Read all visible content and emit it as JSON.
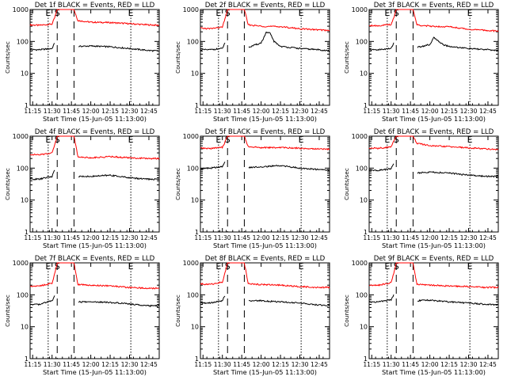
{
  "figure": {
    "start_time_label": "Start Time (15-Jun-05 11:13:00)",
    "ylabel": "Counts/sec",
    "colors": {
      "events": "#000000",
      "lld": "#ff0000",
      "axes": "#000000"
    }
  },
  "chart_data": [
    {
      "type": "line",
      "title": "Det 1f BLACK = Events, RED = LLD",
      "xlabel": "Start Time (15-Jun-05 11:13:00)",
      "ylabel": "Counts/sec",
      "yscale": "log",
      "ylim": [
        1,
        1000
      ],
      "xlim": [
        "11:13",
        "12:53"
      ],
      "xticks": [
        "11:15",
        "11:30",
        "11:45",
        "12:00",
        "12:15",
        "12:30",
        "12:45"
      ],
      "yticks": [
        "1",
        "10",
        "100",
        "1000"
      ],
      "markers": [
        {
          "label": "E",
          "style": "dotted",
          "time": "11:27"
        },
        {
          "label": "S",
          "style": "dashed",
          "time": "11:34"
        },
        {
          "label": "",
          "style": "dashed",
          "time": "11:47"
        },
        {
          "label": "E",
          "style": "dotted",
          "time": "12:31"
        }
      ],
      "series": [
        {
          "name": "LLD",
          "color": "#ff0000",
          "x": [
            "11:13",
            "11:20",
            "11:30",
            "11:32",
            "11:34",
            "11:47",
            "11:50",
            "12:00",
            "12:15",
            "12:30",
            "12:45",
            "12:53"
          ],
          "y": [
            330,
            320,
            350,
            550,
            1000,
            1000,
            450,
            400,
            390,
            360,
            330,
            320
          ]
        },
        {
          "name": "Events",
          "color": "#000000",
          "x": [
            "11:13",
            "11:20",
            "11:30",
            "11:32",
            "11:34",
            "11:47",
            "11:50",
            "12:00",
            "12:15",
            "12:30",
            "12:45",
            "12:53"
          ],
          "y": [
            55,
            55,
            60,
            90,
            null,
            null,
            70,
            72,
            68,
            60,
            52,
            50
          ]
        }
      ]
    },
    {
      "type": "line",
      "title": "Det 2f BLACK = Events, RED = LLD",
      "xlabel": "Start Time (15-Jun-05 11:13:00)",
      "ylabel": "Counts/sec",
      "yscale": "log",
      "ylim": [
        1,
        1000
      ],
      "xlim": [
        "11:13",
        "12:53"
      ],
      "xticks": [
        "11:15",
        "11:30",
        "11:45",
        "12:00",
        "12:15",
        "12:30",
        "12:45"
      ],
      "yticks": [
        "1",
        "10",
        "100",
        "1000"
      ],
      "markers": [
        {
          "label": "E",
          "style": "dotted",
          "time": "11:27"
        },
        {
          "label": "S",
          "style": "dashed",
          "time": "11:34"
        },
        {
          "label": "",
          "style": "dashed",
          "time": "11:47"
        },
        {
          "label": "E",
          "style": "dotted",
          "time": "12:31"
        }
      ],
      "series": [
        {
          "name": "LLD",
          "color": "#ff0000",
          "x": [
            "11:13",
            "11:20",
            "11:30",
            "11:32",
            "11:34",
            "11:47",
            "11:50",
            "12:00",
            "12:15",
            "12:30",
            "12:45",
            "12:53"
          ],
          "y": [
            260,
            250,
            280,
            500,
            1000,
            1000,
            330,
            300,
            290,
            250,
            230,
            220
          ]
        },
        {
          "name": "Events",
          "color": "#000000",
          "x": [
            "11:13",
            "11:20",
            "11:30",
            "11:32",
            "11:34",
            "11:47",
            "11:50",
            "12:00",
            "12:04",
            "12:07",
            "12:10",
            "12:15",
            "12:30",
            "12:45",
            "12:53"
          ],
          "y": [
            55,
            55,
            60,
            90,
            null,
            null,
            65,
            90,
            190,
            180,
            100,
            70,
            60,
            55,
            50
          ]
        }
      ]
    },
    {
      "type": "line",
      "title": "Det 3f BLACK = Events, RED = LLD",
      "xlabel": "Start Time (15-Jun-05 11:13:00)",
      "ylabel": "Counts/sec",
      "yscale": "log",
      "ylim": [
        1,
        1000
      ],
      "xlim": [
        "11:13",
        "12:53"
      ],
      "xticks": [
        "11:15",
        "11:30",
        "11:45",
        "12:00",
        "12:15",
        "12:30",
        "12:45"
      ],
      "yticks": [
        "1",
        "10",
        "100",
        "1000"
      ],
      "markers": [
        {
          "label": "E",
          "style": "dotted",
          "time": "11:27"
        },
        {
          "label": "S",
          "style": "dashed",
          "time": "11:34"
        },
        {
          "label": "",
          "style": "dashed",
          "time": "11:47"
        },
        {
          "label": "E",
          "style": "dotted",
          "time": "12:31"
        }
      ],
      "series": [
        {
          "name": "LLD",
          "color": "#ff0000",
          "x": [
            "11:13",
            "11:20",
            "11:30",
            "11:32",
            "11:34",
            "11:47",
            "11:50",
            "12:00",
            "12:15",
            "12:30",
            "12:45",
            "12:53"
          ],
          "y": [
            320,
            310,
            340,
            550,
            1000,
            1000,
            330,
            300,
            290,
            240,
            220,
            210
          ]
        },
        {
          "name": "Events",
          "color": "#000000",
          "x": [
            "11:13",
            "11:20",
            "11:30",
            "11:32",
            "11:34",
            "11:47",
            "11:50",
            "12:00",
            "12:03",
            "12:06",
            "12:10",
            "12:15",
            "12:30",
            "12:45",
            "12:53"
          ],
          "y": [
            55,
            55,
            60,
            90,
            null,
            null,
            65,
            80,
            130,
            110,
            80,
            70,
            60,
            55,
            52
          ]
        }
      ]
    },
    {
      "type": "line",
      "title": "Det 4f BLACK = Events, RED = LLD",
      "xlabel": "Start Time (15-Jun-05 11:13:00)",
      "ylabel": "Counts/sec",
      "yscale": "log",
      "ylim": [
        1,
        1000
      ],
      "xlim": [
        "11:13",
        "12:53"
      ],
      "xticks": [
        "11:15",
        "11:30",
        "11:45",
        "12:00",
        "12:15",
        "12:30",
        "12:45"
      ],
      "yticks": [
        "1",
        "10",
        "100",
        "1000"
      ],
      "markers": [
        {
          "label": "E",
          "style": "dotted",
          "time": "11:27"
        },
        {
          "label": "S",
          "style": "dashed",
          "time": "11:34"
        },
        {
          "label": "",
          "style": "dashed",
          "time": "11:47"
        },
        {
          "label": "E",
          "style": "dotted",
          "time": "12:31"
        }
      ],
      "series": [
        {
          "name": "LLD",
          "color": "#ff0000",
          "x": [
            "11:13",
            "11:20",
            "11:30",
            "11:32",
            "11:34",
            "11:47",
            "11:50",
            "12:00",
            "12:15",
            "12:30",
            "12:45",
            "12:53"
          ],
          "y": [
            270,
            260,
            300,
            550,
            1000,
            1000,
            230,
            210,
            230,
            210,
            200,
            200
          ]
        },
        {
          "name": "Events",
          "color": "#000000",
          "x": [
            "11:13",
            "11:20",
            "11:30",
            "11:32",
            "11:34",
            "11:47",
            "11:50",
            "12:00",
            "12:15",
            "12:30",
            "12:45",
            "12:53"
          ],
          "y": [
            45,
            45,
            55,
            90,
            null,
            null,
            55,
            55,
            60,
            50,
            45,
            45
          ]
        }
      ]
    },
    {
      "type": "line",
      "title": "Det 5f BLACK = Events, RED = LLD",
      "xlabel": "Start Time (15-Jun-05 11:13:00)",
      "ylabel": "Counts/sec",
      "yscale": "log",
      "ylim": [
        1,
        1000
      ],
      "xlim": [
        "11:13",
        "12:53"
      ],
      "xticks": [
        "11:15",
        "11:30",
        "11:45",
        "12:00",
        "12:15",
        "12:30",
        "12:45"
      ],
      "yticks": [
        "1",
        "10",
        "100",
        "1000"
      ],
      "markers": [
        {
          "label": "E",
          "style": "dotted",
          "time": "11:27"
        },
        {
          "label": "S",
          "style": "dashed",
          "time": "11:34"
        },
        {
          "label": "",
          "style": "dashed",
          "time": "11:47"
        },
        {
          "label": "E",
          "style": "dotted",
          "time": "12:31"
        }
      ],
      "series": [
        {
          "name": "LLD",
          "color": "#ff0000",
          "x": [
            "11:13",
            "11:20",
            "11:30",
            "11:32",
            "11:34",
            "11:47",
            "11:50",
            "12:00",
            "12:15",
            "12:30",
            "12:45",
            "12:53"
          ],
          "y": [
            420,
            410,
            450,
            650,
            1000,
            1000,
            470,
            440,
            440,
            420,
            400,
            390
          ]
        },
        {
          "name": "Events",
          "color": "#000000",
          "x": [
            "11:13",
            "11:20",
            "11:30",
            "11:32",
            "11:34",
            "11:47",
            "11:50",
            "12:00",
            "12:15",
            "12:30",
            "12:45",
            "12:53"
          ],
          "y": [
            95,
            100,
            110,
            160,
            null,
            null,
            105,
            110,
            120,
            100,
            90,
            85
          ]
        }
      ]
    },
    {
      "type": "line",
      "title": "Det 6f BLACK = Events, RED = LLD",
      "xlabel": "Start Time (15-Jun-05 11:13:00)",
      "ylabel": "Counts/sec",
      "yscale": "log",
      "ylim": [
        1,
        1000
      ],
      "xlim": [
        "11:13",
        "12:53"
      ],
      "xticks": [
        "11:15",
        "11:30",
        "11:45",
        "12:00",
        "12:15",
        "12:30",
        "12:45"
      ],
      "yticks": [
        "1",
        "10",
        "100",
        "1000"
      ],
      "markers": [
        {
          "label": "E",
          "style": "dotted",
          "time": "11:27"
        },
        {
          "label": "S",
          "style": "dashed",
          "time": "11:34"
        },
        {
          "label": "",
          "style": "dashed",
          "time": "11:47"
        },
        {
          "label": "E",
          "style": "dotted",
          "time": "12:31"
        }
      ],
      "series": [
        {
          "name": "LLD",
          "color": "#ff0000",
          "x": [
            "11:13",
            "11:20",
            "11:30",
            "11:32",
            "11:34",
            "11:47",
            "11:50",
            "12:00",
            "12:15",
            "12:30",
            "12:45",
            "12:53"
          ],
          "y": [
            420,
            420,
            460,
            700,
            1000,
            1000,
            600,
            500,
            470,
            430,
            400,
            380
          ]
        },
        {
          "name": "Events",
          "color": "#000000",
          "x": [
            "11:13",
            "11:20",
            "11:30",
            "11:32",
            "11:34",
            "11:47",
            "11:50",
            "12:00",
            "12:15",
            "12:30",
            "12:45",
            "12:53"
          ],
          "y": [
            85,
            85,
            95,
            140,
            null,
            null,
            70,
            75,
            70,
            60,
            55,
            55
          ]
        }
      ]
    },
    {
      "type": "line",
      "title": "Det 7f BLACK = Events, RED = LLD",
      "xlabel": "Start Time (15-Jun-05 11:13:00)",
      "ylabel": "Counts/sec",
      "yscale": "log",
      "ylim": [
        1,
        1000
      ],
      "xlim": [
        "11:13",
        "12:53"
      ],
      "xticks": [
        "11:15",
        "11:30",
        "11:45",
        "12:00",
        "12:15",
        "12:30",
        "12:45"
      ],
      "yticks": [
        "1",
        "10",
        "100",
        "1000"
      ],
      "markers": [
        {
          "label": "E",
          "style": "dotted",
          "time": "11:27"
        },
        {
          "label": "S",
          "style": "dashed",
          "time": "11:34"
        },
        {
          "label": "",
          "style": "dashed",
          "time": "11:47"
        },
        {
          "label": "E",
          "style": "dotted",
          "time": "12:31"
        }
      ],
      "series": [
        {
          "name": "LLD",
          "color": "#ff0000",
          "x": [
            "11:13",
            "11:20",
            "11:30",
            "11:32",
            "11:34",
            "11:47",
            "11:50",
            "12:00",
            "12:15",
            "12:30",
            "12:45",
            "12:53"
          ],
          "y": [
            190,
            190,
            230,
            450,
            1000,
            1000,
            210,
            200,
            190,
            170,
            160,
            160
          ]
        },
        {
          "name": "Events",
          "color": "#000000",
          "x": [
            "11:13",
            "11:20",
            "11:30",
            "11:32",
            "11:34",
            "11:47",
            "11:50",
            "12:00",
            "12:15",
            "12:30",
            "12:45",
            "12:53"
          ],
          "y": [
            50,
            50,
            65,
            90,
            null,
            null,
            60,
            60,
            58,
            52,
            45,
            45
          ]
        }
      ]
    },
    {
      "type": "line",
      "title": "Det 8f BLACK = Events, RED = LLD",
      "xlabel": "Start Time (15-Jun-05 11:13:00)",
      "ylabel": "Counts/sec",
      "yscale": "log",
      "ylim": [
        1,
        1000
      ],
      "xlim": [
        "11:13",
        "12:53"
      ],
      "xticks": [
        "11:15",
        "11:30",
        "11:45",
        "12:00",
        "12:15",
        "12:30",
        "12:45"
      ],
      "yticks": [
        "1",
        "10",
        "100",
        "1000"
      ],
      "markers": [
        {
          "label": "E",
          "style": "dotted",
          "time": "11:27"
        },
        {
          "label": "S",
          "style": "dashed",
          "time": "11:34"
        },
        {
          "label": "",
          "style": "dashed",
          "time": "11:47"
        },
        {
          "label": "E",
          "style": "dotted",
          "time": "12:31"
        }
      ],
      "series": [
        {
          "name": "LLD",
          "color": "#ff0000",
          "x": [
            "11:13",
            "11:20",
            "11:30",
            "11:32",
            "11:34",
            "11:47",
            "11:50",
            "12:00",
            "12:15",
            "12:30",
            "12:45",
            "12:53"
          ],
          "y": [
            220,
            210,
            250,
            480,
            1000,
            1000,
            220,
            210,
            200,
            180,
            170,
            170
          ]
        },
        {
          "name": "Events",
          "color": "#000000",
          "x": [
            "11:13",
            "11:20",
            "11:30",
            "11:32",
            "11:34",
            "11:47",
            "11:50",
            "12:00",
            "12:15",
            "12:30",
            "12:45",
            "12:53"
          ],
          "y": [
            55,
            55,
            65,
            95,
            null,
            null,
            65,
            65,
            60,
            55,
            48,
            45
          ]
        }
      ]
    },
    {
      "type": "line",
      "title": "Det 9f BLACK = Events, RED = LLD",
      "xlabel": "Start Time (15-Jun-05 11:13:00)",
      "ylabel": "Counts/sec",
      "yscale": "log",
      "ylim": [
        1,
        1000
      ],
      "xlim": [
        "11:13",
        "12:53"
      ],
      "xticks": [
        "11:15",
        "11:30",
        "11:45",
        "12:00",
        "12:15",
        "12:30",
        "12:45"
      ],
      "yticks": [
        "1",
        "10",
        "100",
        "1000"
      ],
      "markers": [
        {
          "label": "E",
          "style": "dotted",
          "time": "11:27"
        },
        {
          "label": "S",
          "style": "dashed",
          "time": "11:34"
        },
        {
          "label": "",
          "style": "dashed",
          "time": "11:47"
        },
        {
          "label": "E",
          "style": "dotted",
          "time": "12:31"
        }
      ],
      "series": [
        {
          "name": "LLD",
          "color": "#ff0000",
          "x": [
            "11:13",
            "11:20",
            "11:30",
            "11:32",
            "11:34",
            "11:47",
            "11:50",
            "12:00",
            "12:15",
            "12:30",
            "12:45",
            "12:53"
          ],
          "y": [
            200,
            200,
            240,
            460,
            1000,
            1000,
            210,
            200,
            190,
            180,
            170,
            170
          ]
        },
        {
          "name": "Events",
          "color": "#000000",
          "x": [
            "11:13",
            "11:20",
            "11:30",
            "11:32",
            "11:34",
            "11:47",
            "11:50",
            "12:00",
            "12:15",
            "12:30",
            "12:45",
            "12:53"
          ],
          "y": [
            60,
            60,
            70,
            100,
            null,
            null,
            65,
            68,
            60,
            55,
            50,
            48
          ]
        }
      ]
    }
  ]
}
